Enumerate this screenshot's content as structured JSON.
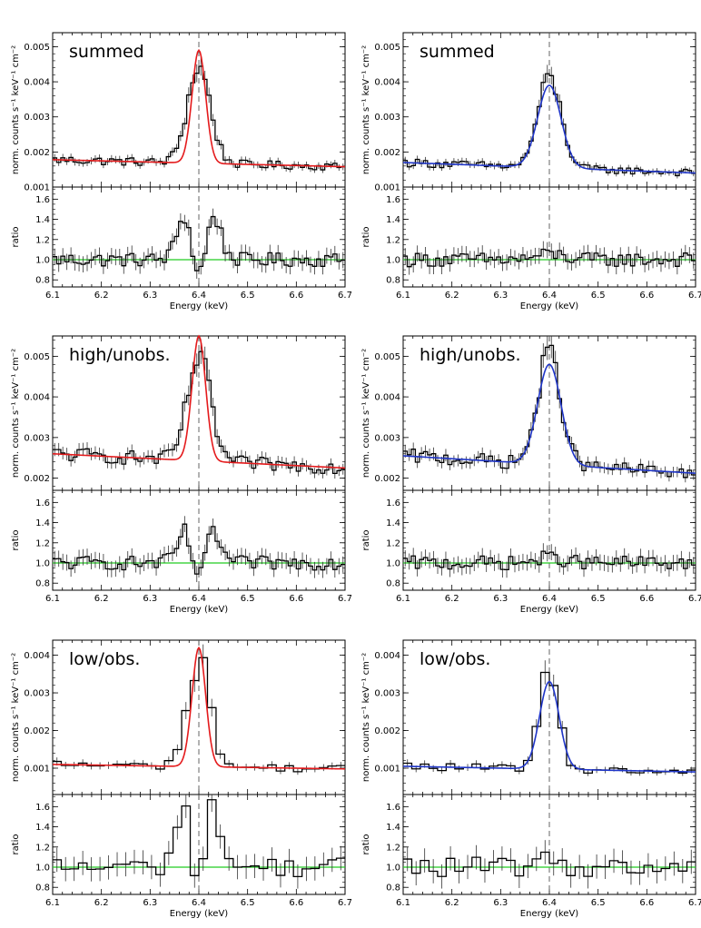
{
  "colors": {
    "red_model": "#e41a1c",
    "blue_model": "#1f35c8",
    "ratio_line": "#22cc22",
    "data": "#000000",
    "dashed": "#555555"
  },
  "chart_data": [
    {
      "type": "line",
      "title": "summed",
      "model_color": "red",
      "xlabel": "Energy (keV)",
      "ylabel": "norm. counts s⁻¹ keV⁻¹ cm⁻²",
      "ratio_ylabel": "ratio",
      "xlim": [
        6.1,
        6.7
      ],
      "ylim": [
        0.001,
        0.0054
      ],
      "ratio_ylim": [
        0.73,
        1.72
      ],
      "xticks": [
        "6.1",
        "6.2",
        "6.3",
        "6.4",
        "6.5",
        "6.6",
        "6.7"
      ],
      "yticks": [
        "0.001",
        "0.002",
        "0.003",
        "0.004",
        "0.005"
      ],
      "ratio_yticks": [
        "0.8",
        "1.0",
        "1.2",
        "1.4",
        "1.6"
      ],
      "line_energy": 6.4,
      "model": {
        "cont_a": 0.00178,
        "cont_b": 0.00158,
        "peak": 0.0049,
        "center": 6.4,
        "sigma": 0.014
      }
    },
    {
      "type": "line",
      "title": "summed",
      "model_color": "blue",
      "xlabel": "Energy (keV)",
      "ylabel": "norm. counts s⁻¹ keV⁻¹ cm⁻²",
      "ratio_ylabel": "ratio",
      "xlim": [
        6.1,
        6.7
      ],
      "ylim": [
        0.001,
        0.0054
      ],
      "ratio_ylim": [
        0.73,
        1.72
      ],
      "xticks": [
        "6.1",
        "6.2",
        "6.3",
        "6.4",
        "6.5",
        "6.6",
        "6.7"
      ],
      "yticks": [
        "0.001",
        "0.002",
        "0.003",
        "0.004",
        "0.005"
      ],
      "ratio_yticks": [
        "0.8",
        "1.0",
        "1.2",
        "1.4",
        "1.6"
      ],
      "line_energy": 6.4,
      "model": {
        "cont_a": 0.0017,
        "cont_b": 0.0014,
        "peak": 0.0039,
        "center": 6.4,
        "sigma": 0.024
      }
    },
    {
      "type": "line",
      "title": "high/unobs.",
      "model_color": "red",
      "xlabel": "Energy (keV)",
      "ylabel": "norm. counts s⁻¹ keV⁻¹ cm⁻²",
      "ratio_ylabel": "ratio",
      "xlim": [
        6.1,
        6.7
      ],
      "ylim": [
        0.0017,
        0.0055
      ],
      "ratio_ylim": [
        0.73,
        1.72
      ],
      "xticks": [
        "6.1",
        "6.2",
        "6.3",
        "6.4",
        "6.5",
        "6.6",
        "6.7"
      ],
      "yticks": [
        "0.002",
        "0.003",
        "0.004",
        "0.005"
      ],
      "ratio_yticks": [
        "0.8",
        "1.0",
        "1.2",
        "1.4",
        "1.6"
      ],
      "line_energy": 6.4,
      "model": {
        "cont_a": 0.0026,
        "cont_b": 0.00225,
        "peak": 0.0055,
        "center": 6.4,
        "sigma": 0.014
      }
    },
    {
      "type": "line",
      "title": "high/unobs.",
      "model_color": "blue",
      "xlabel": "Energy (keV)",
      "ylabel": "norm. counts s⁻¹ keV⁻¹ cm⁻²",
      "ratio_ylabel": "ratio",
      "xlim": [
        6.1,
        6.7
      ],
      "ylim": [
        0.0017,
        0.0055
      ],
      "ratio_ylim": [
        0.73,
        1.72
      ],
      "xticks": [
        "6.1",
        "6.2",
        "6.3",
        "6.4",
        "6.5",
        "6.6",
        "6.7"
      ],
      "yticks": [
        "0.002",
        "0.003",
        "0.004",
        "0.005"
      ],
      "ratio_yticks": [
        "0.8",
        "1.0",
        "1.2",
        "1.4",
        "1.6"
      ],
      "line_energy": 6.4,
      "model": {
        "cont_a": 0.00255,
        "cont_b": 0.00212,
        "peak": 0.0048,
        "center": 6.4,
        "sigma": 0.024
      }
    },
    {
      "type": "line",
      "title": "low/obs.",
      "model_color": "red",
      "xlabel": "Energy (keV)",
      "ylabel": "norm. counts s⁻¹ keV⁻¹ cm⁻²",
      "ratio_ylabel": "ratio",
      "xlim": [
        6.1,
        6.7
      ],
      "ylim": [
        0.0003,
        0.0044
      ],
      "ratio_ylim": [
        0.73,
        1.72
      ],
      "xticks": [
        "6.1",
        "6.2",
        "6.3",
        "6.4",
        "6.5",
        "6.6",
        "6.7"
      ],
      "yticks": [
        "0.001",
        "0.002",
        "0.003",
        "0.004"
      ],
      "ratio_yticks": [
        "0.8",
        "1.0",
        "1.2",
        "1.4",
        "1.6"
      ],
      "line_energy": 6.4,
      "model": {
        "cont_a": 0.0011,
        "cont_b": 0.00098,
        "peak": 0.0042,
        "center": 6.4,
        "sigma": 0.014
      }
    },
    {
      "type": "line",
      "title": "low/obs.",
      "model_color": "blue",
      "xlabel": "Energy (keV)",
      "ylabel": "norm. counts s⁻¹ keV⁻¹ cm⁻²",
      "ratio_ylabel": "ratio",
      "xlim": [
        6.1,
        6.7
      ],
      "ylim": [
        0.0003,
        0.0044
      ],
      "ratio_ylim": [
        0.73,
        1.72
      ],
      "xticks": [
        "6.1",
        "6.2",
        "6.3",
        "6.4",
        "6.5",
        "6.6",
        "6.7"
      ],
      "yticks": [
        "0.001",
        "0.002",
        "0.003",
        "0.004"
      ],
      "ratio_yticks": [
        "0.8",
        "1.0",
        "1.2",
        "1.4",
        "1.6"
      ],
      "line_energy": 6.4,
      "model": {
        "cont_a": 0.00105,
        "cont_b": 0.0009,
        "peak": 0.0033,
        "center": 6.4,
        "sigma": 0.02
      }
    }
  ]
}
